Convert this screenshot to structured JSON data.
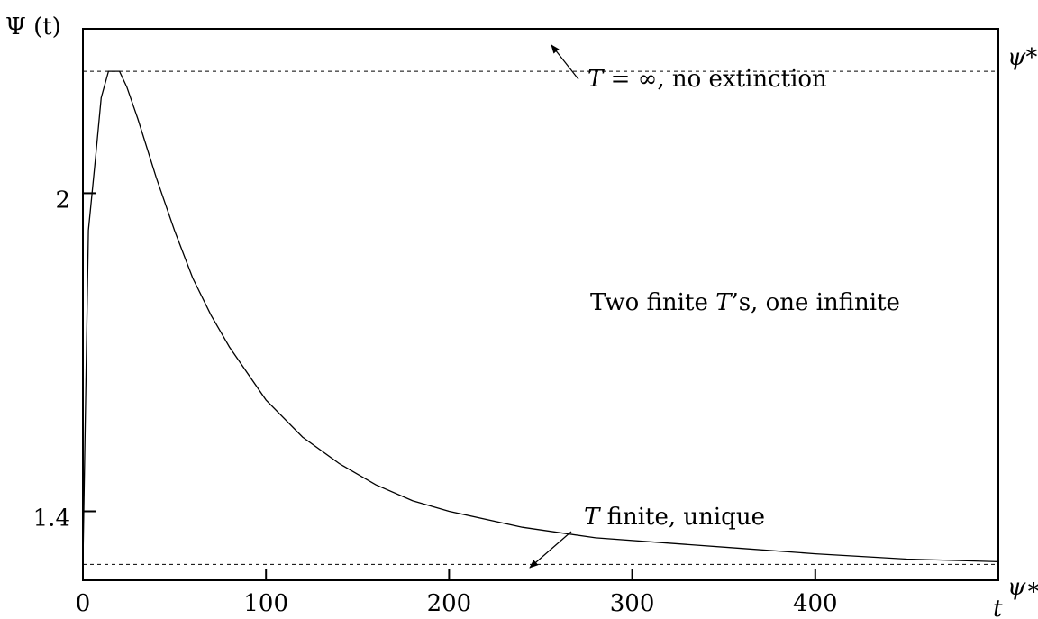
{
  "chart_data": {
    "type": "line",
    "title": "",
    "xlabel": "t",
    "ylabel": "Ψ (t)",
    "xlim": [
      0,
      500
    ],
    "ylim": [
      1.27,
      2.31
    ],
    "xticks": [
      0,
      100,
      200,
      300,
      400
    ],
    "yticks": [
      1.4,
      2
    ],
    "ytick_labels": [
      "1.4",
      "2"
    ],
    "grid": false,
    "series": [
      {
        "x": [
          0,
          3,
          7,
          10,
          14,
          17,
          20,
          24,
          30,
          40,
          50,
          60,
          70,
          80,
          100,
          120,
          140,
          160,
          180,
          200,
          240,
          280,
          320,
          360,
          400,
          450,
          500
        ],
        "y": [
          1.3,
          1.93,
          2.07,
          2.18,
          2.23,
          2.23,
          2.23,
          2.2,
          2.14,
          2.03,
          1.93,
          1.84,
          1.77,
          1.71,
          1.61,
          1.54,
          1.49,
          1.45,
          1.42,
          1.4,
          1.37,
          1.35,
          1.34,
          1.33,
          1.32,
          1.31,
          1.305
        ]
      }
    ],
    "reference_lines": [
      {
        "label": "ψ*",
        "y": 2.23,
        "style": "dashed"
      },
      {
        "label": "ψ∗",
        "y": 1.3,
        "style": "dashed"
      }
    ],
    "annotations": [
      {
        "id": "top",
        "prefix": "T",
        "mid": " = ∞",
        "suffix": ", no extinction"
      },
      {
        "id": "middle",
        "prefix": "Two finite ",
        "mid": "T",
        "suffix": "’s, one infinite"
      },
      {
        "id": "bottom",
        "prefix": "T",
        "mid": "",
        "suffix": " finite, unique"
      }
    ]
  }
}
